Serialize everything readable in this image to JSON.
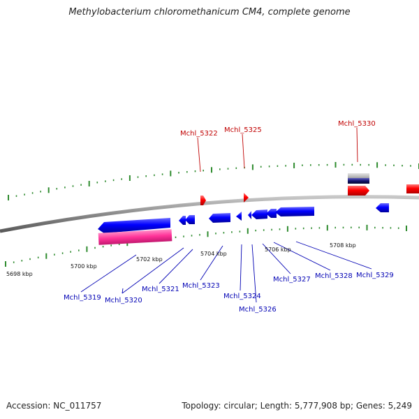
{
  "title": "Methylobacterium chloromethanicum CM4, complete genome",
  "footer": {
    "accession": "Accession: NC_011757",
    "summary": "Topology: circular; Length: 5,777,908 bp; Genes: 5,249"
  },
  "colors": {
    "backbone": "#808080",
    "tick": "#2e8b2e",
    "gene_forward": "#ff0000",
    "gene_reverse": "#0000ff",
    "gene_highlight": "#ff3399",
    "label_forward": "#c00000",
    "label_reverse": "#0000b4"
  },
  "scale_labels": [
    "5698 kbp",
    "5700 kbp",
    "5702 kbp",
    "5704 kbp",
    "5706 kbp",
    "5708 kbp"
  ],
  "forward_labels": [
    "Mchl_5322",
    "Mchl_5325",
    "Mchl_5330"
  ],
  "reverse_labels": [
    "Mchl_5319",
    "Mchl_5320",
    "Mchl_5321",
    "Mchl_5323",
    "Mchl_5324",
    "Mchl_5326",
    "Mchl_5327",
    "Mchl_5328",
    "Mchl_5329"
  ]
}
